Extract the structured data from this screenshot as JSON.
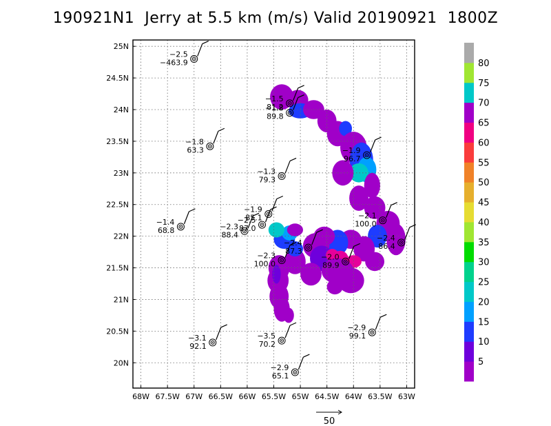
{
  "title": "190921N1  Jerry at 5.5 km (m/s) Valid 20190921  1800Z",
  "chart_data": {
    "type": "scatter",
    "title": "190921N1  Jerry at 5.5 km (m/s) Valid 20190921  1800Z",
    "xlabel": "",
    "ylabel": "",
    "xlim": [
      -68.15,
      -62.85
    ],
    "ylim": [
      19.6,
      25.1
    ],
    "grid": true,
    "x_ticks": [
      -68,
      -67.5,
      -67,
      -66.5,
      -66,
      -65.5,
      -65,
      -64.5,
      -64,
      -63.5,
      -63
    ],
    "x_tick_labels": [
      "68W",
      "67.5W",
      "67W",
      "66.5W",
      "66W",
      "65.5W",
      "65W",
      "64.5W",
      "64W",
      "63.5W",
      "63W"
    ],
    "y_ticks": [
      20,
      20.5,
      21,
      21.5,
      22,
      22.5,
      23,
      23.5,
      24,
      24.5,
      25
    ],
    "y_tick_labels": [
      "20N",
      "20.5N",
      "21N",
      "21.5N",
      "22N",
      "22.5N",
      "23N",
      "23.5N",
      "24N",
      "24.5N",
      "25N"
    ],
    "colorbar": {
      "labels": [
        "5",
        "10",
        "15",
        "20",
        "25",
        "30",
        "35",
        "40",
        "45",
        "50",
        "55",
        "60",
        "65",
        "70",
        "75",
        "80"
      ],
      "colors": [
        "#a000c8",
        "#6e00dc",
        "#1e3cff",
        "#00a0ff",
        "#00c8c8",
        "#00d28c",
        "#00dc00",
        "#a0e632",
        "#e6dc32",
        "#e6af2d",
        "#f08228",
        "#fa3c3c",
        "#f00082",
        "#a000c8",
        "#00c8c8",
        "#a0e632",
        "#aaaaaa"
      ]
    },
    "points": [
      {
        "x": -67.0,
        "y": 24.8,
        "u": -2.5,
        "v": -463.9,
        "top": "−2.5",
        "bottom": "−463.9"
      },
      {
        "x": -65.2,
        "y": 24.1,
        "u": -1.5,
        "v": 81.2,
        "top": "−1.5",
        "bottom": "81.2"
      },
      {
        "x": -65.2,
        "y": 23.95,
        "u": -1.8,
        "v": 89.8,
        "top": "−1.8",
        "bottom": "89.8"
      },
      {
        "x": -66.7,
        "y": 23.42,
        "u": -1.8,
        "v": 63.3,
        "top": "−1.8",
        "bottom": "63.3"
      },
      {
        "x": -63.75,
        "y": 23.28,
        "u": -1.9,
        "v": 96.7,
        "top": "−1.9",
        "bottom": "96.7"
      },
      {
        "x": -65.35,
        "y": 22.95,
        "u": -1.3,
        "v": 79.3,
        "top": "−1.3",
        "bottom": "79.3"
      },
      {
        "x": -65.6,
        "y": 22.35,
        "u": -1.9,
        "v": 85.1,
        "top": "−1.9",
        "bottom": "85.1"
      },
      {
        "x": -65.72,
        "y": 22.18,
        "u": -2.5,
        "v": 87.0,
        "top": "−2.5",
        "bottom": "87.0"
      },
      {
        "x": -66.05,
        "y": 22.08,
        "u": -2.3,
        "v": 88.4,
        "top": "−2.3",
        "bottom": "88.4"
      },
      {
        "x": -67.25,
        "y": 22.15,
        "u": -1.4,
        "v": 68.8,
        "top": "−1.4",
        "bottom": "68.8"
      },
      {
        "x": -63.45,
        "y": 22.25,
        "u": -2.1,
        "v": 100.0,
        "top": "−2.1",
        "bottom": "100.0"
      },
      {
        "x": -63.1,
        "y": 21.9,
        "u": -2.4,
        "v": 86.4,
        "top": "−2.4",
        "bottom": "86.4"
      },
      {
        "x": -64.85,
        "y": 21.82,
        "u": -2.4,
        "v": 87.3,
        "top": "−2.4",
        "bottom": "87.3"
      },
      {
        "x": -65.35,
        "y": 21.62,
        "u": -2.3,
        "v": 100.0,
        "top": "−2.3",
        "bottom": "100.0"
      },
      {
        "x": -64.15,
        "y": 21.6,
        "u": -2.0,
        "v": 89.9,
        "top": "−2.0",
        "bottom": "89.9"
      },
      {
        "x": -66.65,
        "y": 20.32,
        "u": -3.1,
        "v": 92.1,
        "top": "−3.1",
        "bottom": "92.1"
      },
      {
        "x": -65.35,
        "y": 20.35,
        "u": -3.5,
        "v": 70.2,
        "top": "−3.5",
        "bottom": "70.2"
      },
      {
        "x": -63.65,
        "y": 20.48,
        "u": -2.9,
        "v": 99.1,
        "top": "−2.9",
        "bottom": "99.1"
      },
      {
        "x": -65.1,
        "y": 19.85,
        "u": -2.9,
        "v": 65.1,
        "top": "−2.9",
        "bottom": "65.1"
      }
    ],
    "reference_vector_label": "50"
  }
}
